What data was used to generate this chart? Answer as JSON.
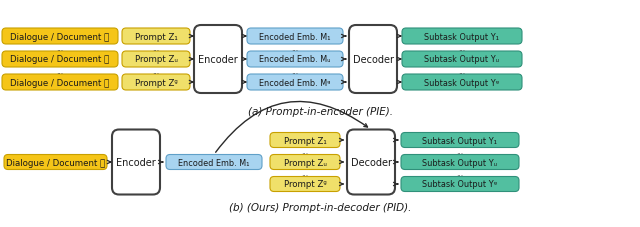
{
  "fig_width": 6.4,
  "fig_height": 2.28,
  "dpi": 100,
  "bg_color": "#ffffff",
  "color_gold": "#F5C518",
  "color_yellow_light": "#F0E06A",
  "color_blue": "#A8D4F0",
  "color_teal": "#52BFA0",
  "color_white": "#FFFFFF",
  "color_text": "#1a1a1a",
  "caption_a": "(a) Prompt-in-encoder (PIE).",
  "caption_b": "(b) (Ours) Prompt-in-decoder (PID).",
  "top_rows": [
    {
      "doc": "Dialogue / Document 𝒳",
      "prompt": "Prompt Z₁",
      "emb": "Encoded Emb. M₁",
      "out": "Subtask Output Y₁"
    },
    {
      "doc": "Dialogue / Document 𝒳",
      "prompt": "Prompt Zᵤ",
      "emb": "Encoded Emb. Mᵤ",
      "out": "Subtask Output Yᵤ"
    },
    {
      "doc": "Dialogue / Document 𝒳",
      "prompt": "Prompt Zᵍ",
      "emb": "Encoded Emb. Mᵍ",
      "out": "Subtask Output Yᵍ"
    }
  ],
  "bot_doc": "Dialogue / Document 𝒳",
  "bot_emb": "Encoded Emb. M₁",
  "bot_prompts": [
    "Prompt Z₁",
    "Prompt Zᵤ",
    "Prompt Zᵍ"
  ],
  "bot_outputs": [
    "Subtask Output Y₁",
    "Subtask Output Yᵤ",
    "Subtask Output Yᵍ"
  ],
  "font_size_box": 6.2,
  "font_size_enc": 7.0,
  "font_size_caption": 7.5,
  "arrow_color": "#2a2a2a",
  "edge_gold": "#C8A000",
  "edge_blue": "#60A0C8",
  "edge_teal": "#30907A",
  "edge_box": "#404040"
}
